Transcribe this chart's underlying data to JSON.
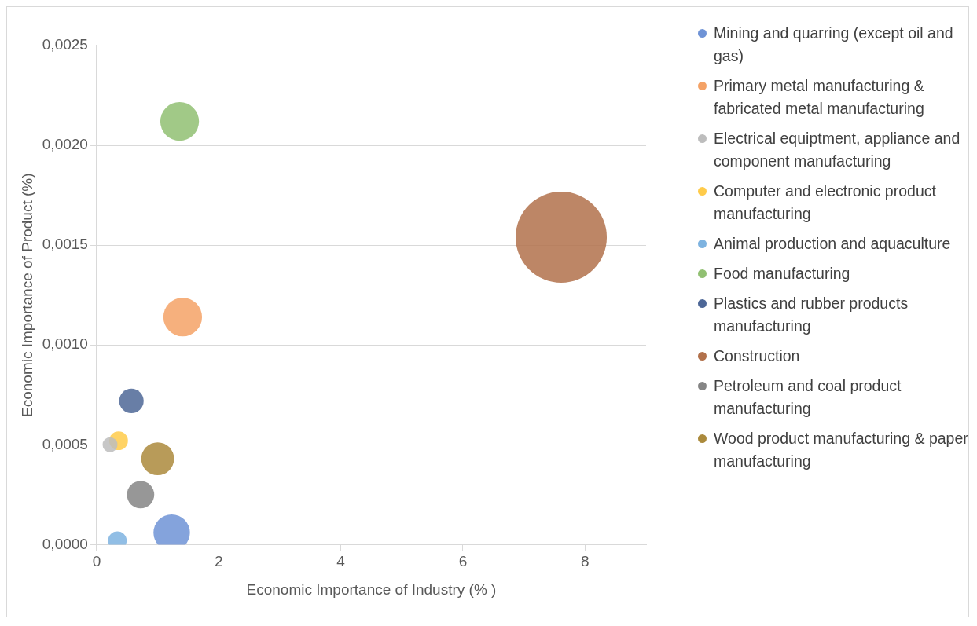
{
  "chart_data": {
    "type": "bubble",
    "xlabel": "Economic Importance of Industry (% )",
    "ylabel": "Economic Importance of Product (%)",
    "xlim": [
      0,
      9
    ],
    "xticks": [
      0,
      2,
      4,
      6,
      8
    ],
    "ylim": [
      0,
      0.0025
    ],
    "yticks": [
      {
        "value": 0,
        "label": "0,0000"
      },
      {
        "value": 0.0005,
        "label": "0,0005"
      },
      {
        "value": 0.001,
        "label": "0,0010"
      },
      {
        "value": 0.0015,
        "label": "0,0015"
      },
      {
        "value": 0.002,
        "label": "0,0020"
      },
      {
        "value": 0.0025,
        "label": "0,0025"
      }
    ],
    "grid": "y",
    "legend": "right",
    "marker": "circle",
    "series": [
      {
        "name": "Mining and quarring (except oil and gas)",
        "color": "#6f93d6",
        "x": [
          1.23
        ],
        "values": [
          6e-05
        ],
        "sizes": [
          0.16
        ]
      },
      {
        "name": "Primary metal manufacturing & fabricated metal manufacturing",
        "color": "#f4a266",
        "x": [
          1.41
        ],
        "values": [
          0.00114
        ],
        "sizes": [
          0.18
        ]
      },
      {
        "name": "Electrical equiptment, appliance and component manufacturing",
        "color": "#bdbdbd",
        "x": [
          0.22
        ],
        "values": [
          0.0005
        ],
        "sizes": [
          0.027
        ]
      },
      {
        "name": "Computer and electronic product manufacturing",
        "color": "#ffcb4a",
        "x": [
          0.36
        ],
        "values": [
          0.00052
        ],
        "sizes": [
          0.042
        ]
      },
      {
        "name": "Animal production and aquaculture",
        "color": "#7eb3e0",
        "x": [
          0.34
        ],
        "values": [
          2e-05
        ],
        "sizes": [
          0.042
        ]
      },
      {
        "name": "Food manufacturing",
        "color": "#91c072",
        "x": [
          1.36
        ],
        "values": [
          0.00212
        ],
        "sizes": [
          0.18
        ]
      },
      {
        "name": "Plastics and rubber products manufacturing",
        "color": "#4d6797",
        "x": [
          0.57
        ],
        "values": [
          0.00072
        ],
        "sizes": [
          0.072
        ]
      },
      {
        "name": "Construction",
        "color": "#b2714b",
        "x": [
          7.61
        ],
        "values": [
          0.00154
        ],
        "sizes": [
          1
        ]
      },
      {
        "name": "Petroleum and coal product manufacturing",
        "color": "#858585",
        "x": [
          0.72
        ],
        "values": [
          0.00025
        ],
        "sizes": [
          0.09
        ]
      },
      {
        "name": "Wood product manufacturing & paper manufacturing",
        "color": "#ab8a3c",
        "x": [
          1.0
        ],
        "values": [
          0.00043
        ],
        "sizes": [
          0.13
        ]
      }
    ]
  }
}
